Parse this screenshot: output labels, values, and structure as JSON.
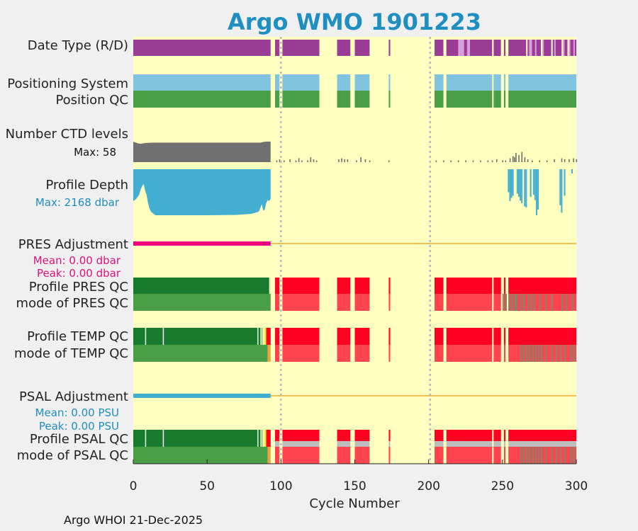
{
  "title": "Argo WMO 1901223",
  "footer": "Argo WHOI 21-Dec-2025",
  "chart_data": {
    "type": "bar",
    "title": "Argo WMO 1901223",
    "xlabel": "Cycle Number",
    "xlim": [
      0,
      300
    ],
    "xticks": [
      "0",
      "50",
      "100",
      "150",
      "200",
      "250",
      "300"
    ],
    "vlines": [
      100,
      201
    ],
    "row_labels": {
      "date_type": "Date Type (R/D)",
      "positioning": "Positioning System",
      "position_qc": "Position QC",
      "ctd": "Number CTD levels",
      "depth": "Profile Depth",
      "pres_adj": "PRES Adjustment",
      "pres_qc": "Profile PRES QC",
      "pres_mode": "mode of PRES QC",
      "temp_qc": "Profile TEMP QC",
      "temp_mode": "mode of TEMP QC",
      "psal_adj": "PSAL Adjustment",
      "psal_qc": "Profile PSAL QC",
      "psal_mode": "mode of PSAL QC"
    },
    "ctd_max": "Max: 58",
    "depth_max": "Max: 2168 dbar",
    "pres_mean": "Mean: 0.00 dbar",
    "pres_peak": "Peak: 0.00 dbar",
    "psal_mean": "Mean: 0.00 PSU",
    "psal_peak": "Peak: 0.00 PSU",
    "colors": {
      "bg": "#ffffc0",
      "purple": "#9b3d96",
      "lightpurple": "#d8a0d8",
      "blue": "#80c4e0",
      "green": "#4a9e46",
      "darkgreen": "#177a2c",
      "red": "#ff0022",
      "lightred": "#ff4450",
      "gray": "#bcbcbc",
      "ctdgray": "#707070",
      "depth": "#42aed0",
      "pink": "#f00080",
      "orange": "#f0c050",
      "yellow": "#f0f020",
      "lightgreen": "#b0d890",
      "dkorange": "#f5a040",
      "grayish": "#7a8a6a"
    },
    "segments": [
      [
        0,
        93
      ],
      [
        96,
        99
      ],
      [
        101,
        126
      ],
      [
        138,
        147
      ],
      [
        150,
        160
      ],
      [
        173,
        174
      ],
      [
        204,
        210
      ],
      [
        212,
        243
      ],
      [
        244,
        249
      ],
      [
        251,
        252
      ],
      [
        254,
        300
      ]
    ],
    "ctd_profile": [
      [
        0,
        58
      ],
      [
        1,
        56
      ],
      [
        2,
        55
      ],
      [
        3,
        53
      ],
      [
        5,
        52
      ],
      [
        8,
        54
      ],
      [
        12,
        55
      ],
      [
        20,
        55
      ],
      [
        30,
        55
      ],
      [
        40,
        55
      ],
      [
        50,
        55
      ],
      [
        60,
        55
      ],
      [
        70,
        55
      ],
      [
        80,
        55
      ],
      [
        86,
        55
      ],
      [
        88,
        57
      ],
      [
        90,
        58
      ],
      [
        93,
        58
      ]
    ],
    "ctd_sparse": [
      [
        97,
        1
      ],
      [
        99,
        2
      ],
      [
        102,
        1
      ],
      [
        106,
        2
      ],
      [
        110,
        1
      ],
      [
        112,
        3
      ],
      [
        114,
        1
      ],
      [
        118,
        1
      ],
      [
        120,
        4
      ],
      [
        122,
        2
      ],
      [
        124,
        1
      ],
      [
        139,
        2
      ],
      [
        141,
        3
      ],
      [
        143,
        2
      ],
      [
        145,
        2
      ],
      [
        151,
        1
      ],
      [
        154,
        4
      ],
      [
        157,
        2
      ],
      [
        160,
        1
      ],
      [
        173,
        1
      ],
      [
        205,
        1
      ],
      [
        210,
        1
      ],
      [
        215,
        1
      ],
      [
        220,
        1
      ],
      [
        225,
        1
      ],
      [
        230,
        1
      ],
      [
        235,
        1
      ],
      [
        240,
        1
      ],
      [
        243,
        1
      ],
      [
        246,
        2
      ],
      [
        250,
        1
      ],
      [
        252,
        1
      ],
      [
        255,
        3
      ],
      [
        257,
        5
      ],
      [
        258,
        4
      ],
      [
        259,
        8
      ],
      [
        261,
        6
      ],
      [
        263,
        9
      ],
      [
        265,
        4
      ],
      [
        267,
        2
      ],
      [
        270,
        1
      ],
      [
        275,
        1
      ],
      [
        280,
        1
      ],
      [
        285,
        2
      ],
      [
        290,
        3
      ],
      [
        292,
        2
      ],
      [
        295,
        2
      ],
      [
        298,
        3
      ],
      [
        300,
        2
      ]
    ],
    "depth_main": [
      [
        0,
        1500
      ],
      [
        2,
        1400
      ],
      [
        4,
        1200
      ],
      [
        5,
        950
      ],
      [
        6,
        800
      ],
      [
        7,
        700
      ],
      [
        8,
        1000
      ],
      [
        9,
        1200
      ],
      [
        10,
        1600
      ],
      [
        11,
        1850
      ],
      [
        12,
        2000
      ],
      [
        15,
        2168
      ],
      [
        30,
        2168
      ],
      [
        50,
        2168
      ],
      [
        70,
        2150
      ],
      [
        80,
        2100
      ],
      [
        85,
        2000
      ],
      [
        87,
        1650
      ],
      [
        88,
        1950
      ],
      [
        89,
        1900
      ],
      [
        90,
        1600
      ],
      [
        91,
        1450
      ],
      [
        92,
        1500
      ],
      [
        93,
        1400
      ]
    ],
    "depth_sparse": [
      [
        254,
        1080
      ],
      [
        255,
        1500
      ],
      [
        256,
        1350
      ],
      [
        257,
        1250
      ],
      [
        260,
        1150
      ],
      [
        261,
        1300
      ],
      [
        262,
        1480
      ],
      [
        263,
        1600
      ],
      [
        265,
        1750
      ],
      [
        266,
        1800
      ],
      [
        269,
        1300
      ],
      [
        271,
        1200
      ],
      [
        272,
        1450
      ],
      [
        273,
        2168
      ],
      [
        274,
        1900
      ],
      [
        289,
        1700
      ],
      [
        290,
        2050
      ],
      [
        292,
        1250
      ],
      [
        297,
        200
      ]
    ],
    "date_light": [
      [
        220,
        224
      ],
      [
        226,
        228
      ],
      [
        268,
        270
      ],
      [
        272,
        273
      ],
      [
        277,
        278
      ],
      [
        285,
        286
      ],
      [
        291,
        292
      ],
      [
        295,
        296
      ],
      [
        298,
        299
      ]
    ],
    "date_gaps": [
      [
        243,
        244
      ],
      [
        249,
        250
      ],
      [
        252,
        253
      ],
      [
        266,
        267
      ],
      [
        276,
        277
      ],
      [
        283,
        284
      ],
      [
        290,
        291
      ],
      [
        294,
        295
      ]
    ],
    "pres_qc_good": [
      [
        0,
        93
      ]
    ],
    "pres_qc_gaps": [
      [
        92,
        93
      ]
    ],
    "pres_mode_stripes": [
      250,
      252,
      254,
      256,
      258,
      259,
      262,
      264,
      267,
      269,
      271,
      275,
      279,
      283,
      290,
      293,
      297
    ],
    "temp_qc_white": [
      8,
      20,
      84,
      88
    ],
    "temp_mode_stripes": [
      262,
      264,
      266,
      268,
      270,
      272,
      274,
      276,
      279,
      283,
      286,
      289,
      292,
      296,
      298
    ]
  }
}
